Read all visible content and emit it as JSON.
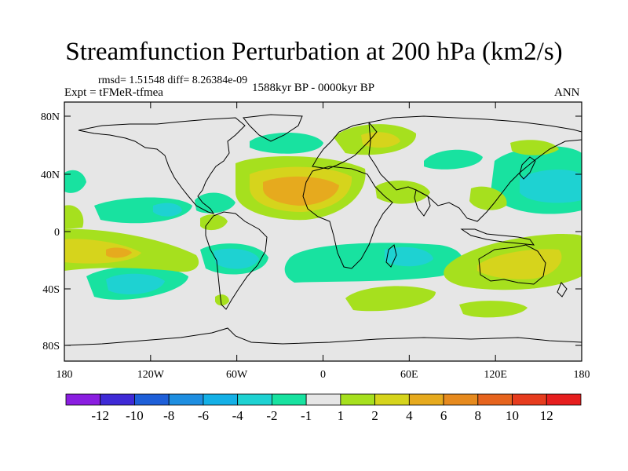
{
  "title": "Streamfunction Perturbation at 200 hPa (km2/s)",
  "stats": "rmsd= 1.51548 diff= 8.26384e-09",
  "experiment": "Expt = tFMeR-tfmea",
  "period": "1588kyr BP - 0000kyr BP",
  "season": "ANN",
  "lat_ticks": [
    "80N",
    "40N",
    "0",
    "40S",
    "80S"
  ],
  "lon_ticks": [
    "180",
    "120W",
    "60W",
    "0",
    "60E",
    "120E",
    "180"
  ],
  "colorbar": {
    "labels": [
      "-12",
      "-10",
      "-8",
      "-6",
      "-4",
      "-2",
      "-1",
      "1",
      "2",
      "4",
      "6",
      "8",
      "10",
      "12"
    ],
    "colors": [
      "#8a1ee0",
      "#3f2ad6",
      "#1e5fd8",
      "#1e8ee0",
      "#14b0e6",
      "#1ed2d2",
      "#18e2a0",
      "#e6e6e6",
      "#a6e01e",
      "#d6d41c",
      "#e6aa1e",
      "#e68a1e",
      "#e6641e",
      "#e63c1e",
      "#e61e1e"
    ]
  },
  "colors": {
    "background": "#e6e6e6",
    "negative_1": "#18e2a0",
    "negative_2": "#1ed2d2",
    "negative_3": "#14b0e6",
    "positive_1": "#a6e01e",
    "positive_2": "#d6d41c",
    "positive_3": "#e6aa1e",
    "positive_4": "#e68a1e"
  }
}
